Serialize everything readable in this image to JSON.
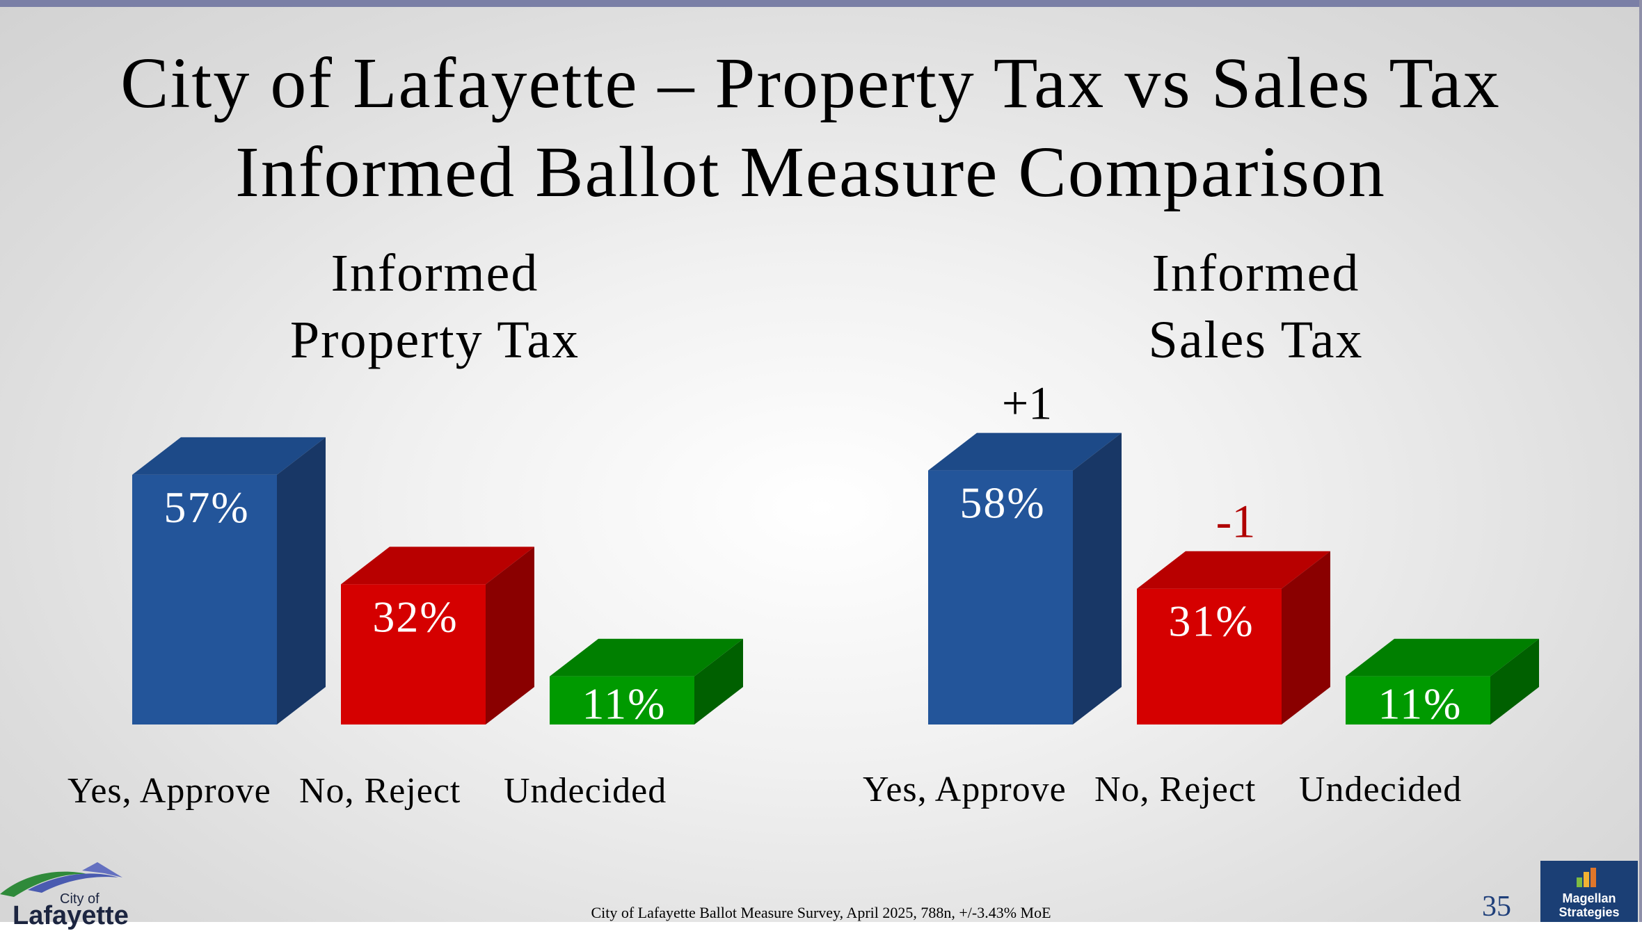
{
  "title_line1": "City of Lafayette – Property Tax vs Sales Tax",
  "title_line2": "Informed Ballot Measure Comparison",
  "footer": "City of Lafayette Ballot Measure Survey, April 2025, 788n, +/-3.43% MoE",
  "page_number": "35",
  "logo_left": {
    "line1": "City of",
    "line2": "Lafayette"
  },
  "logo_right": {
    "line1": "Magellan",
    "line2": "Strategies"
  },
  "colors": {
    "yes": "#23559a",
    "no": "#d50000",
    "undecided": "#009a00",
    "change_negative": "#b00000"
  },
  "chart_data": [
    {
      "type": "bar",
      "title_line1": "Informed",
      "title_line2": "Property Tax",
      "categories": [
        "Yes, Approve",
        "No, Reject",
        "Undecided"
      ],
      "values": [
        57,
        32,
        11
      ],
      "value_labels": [
        "57%",
        "32%",
        "11%"
      ],
      "changes": [
        "",
        "",
        ""
      ]
    },
    {
      "type": "bar",
      "title_line1": "Informed",
      "title_line2": "Sales Tax",
      "categories": [
        "Yes, Approve",
        "No, Reject",
        "Undecided"
      ],
      "values": [
        58,
        31,
        11
      ],
      "value_labels": [
        "58%",
        "31%",
        "11%"
      ],
      "changes": [
        "+1",
        "-1",
        ""
      ]
    }
  ]
}
